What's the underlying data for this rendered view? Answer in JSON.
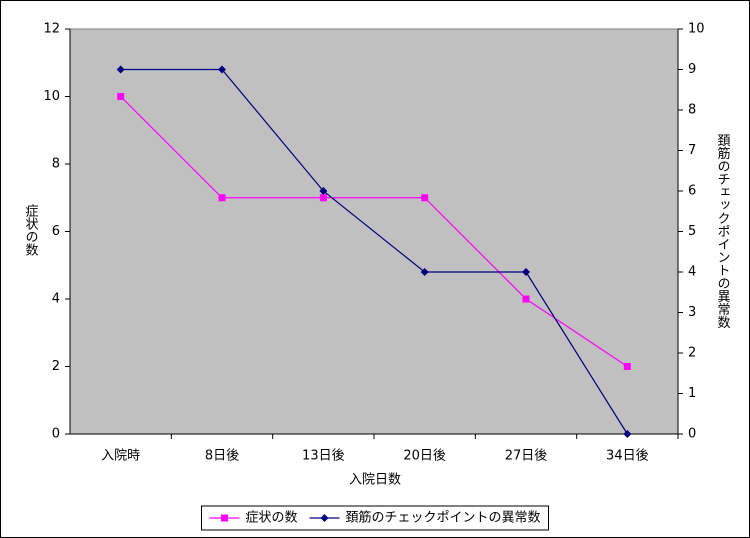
{
  "chart_data": {
    "type": "line",
    "x_label": "入院日数",
    "y_label": "症状の数",
    "y2_label": "頚筋のチェックポイントの異常数",
    "categories": [
      "入院時",
      "8日後",
      "13日後",
      "20日後",
      "27日後",
      "34日後"
    ],
    "series": [
      {
        "name": "症状の数",
        "color": "#ff00ff",
        "marker": "square",
        "values": [
          10,
          7,
          7,
          7,
          4,
          2
        ]
      },
      {
        "name": "頚筋のチェックポイントの異常数",
        "color": "#000080",
        "marker": "diamond",
        "axis": "y2",
        "values": [
          9,
          9,
          6,
          4,
          4,
          0
        ]
      }
    ],
    "ylim": [
      0,
      12
    ],
    "yticks": [
      0,
      2,
      4,
      6,
      8,
      10,
      12
    ],
    "y2lim": [
      0,
      10
    ],
    "y2ticks": [
      0,
      1,
      2,
      3,
      4,
      5,
      6,
      7,
      8,
      9,
      10
    ],
    "legend": "bottom",
    "plot_background": "#c0c0c0"
  }
}
